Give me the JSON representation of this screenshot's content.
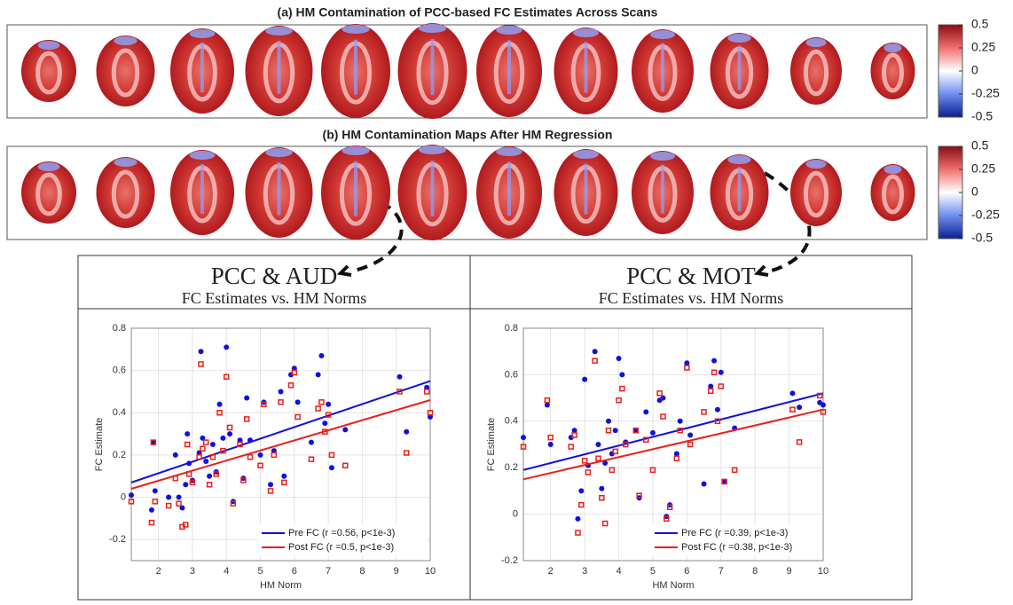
{
  "panel_a": {
    "title": "(a) HM Contamination of PCC-based FC Estimates Across Scans"
  },
  "panel_b": {
    "title": "(b) HM Contamination Maps After HM Regression"
  },
  "colorbar": {
    "lim": [
      -0.5,
      0.5
    ],
    "ticks": [
      0.5,
      0.25,
      0,
      -0.25,
      -0.5
    ]
  },
  "chart_data": [
    {
      "type": "scatter",
      "title": "PCC & AUD",
      "subtitle": "FC Estimates vs. HM Norms",
      "x_label": "HM Norm",
      "y_label": "FC Estimate",
      "grid": true,
      "legend": "lower right",
      "xlim": [
        1.2,
        10
      ],
      "ylim": [
        -0.3,
        0.8
      ],
      "xticks": [
        2,
        3,
        4,
        5,
        6,
        7,
        8,
        9,
        10
      ],
      "yticks": [
        -0.2,
        0,
        0.2,
        0.4,
        0.6,
        0.8
      ],
      "x": [
        1.2,
        1.8,
        1.85,
        1.9,
        2.3,
        2.5,
        2.6,
        2.7,
        2.8,
        2.85,
        2.9,
        3.0,
        3.2,
        3.25,
        3.3,
        3.4,
        3.5,
        3.6,
        3.7,
        3.8,
        3.9,
        4.0,
        4.1,
        4.2,
        4.4,
        4.5,
        4.6,
        4.7,
        5.0,
        5.1,
        5.3,
        5.4,
        5.6,
        5.7,
        5.9,
        6.0,
        6.1,
        6.5,
        6.7,
        6.8,
        6.9,
        7.0,
        7.1,
        7.5,
        9.1,
        9.3,
        9.9,
        10.0
      ],
      "series": [
        {
          "name": "Pre FC (r =0.56, p<1e-3)",
          "color": "#1010e0",
          "marker": "circle",
          "fit": [
            0.07,
            0.55
          ],
          "values": [
            0.01,
            -0.06,
            0.26,
            0.03,
            0.0,
            0.2,
            0.0,
            -0.05,
            0.06,
            0.3,
            0.16,
            0.08,
            0.21,
            0.69,
            0.28,
            0.17,
            0.1,
            0.25,
            0.12,
            0.44,
            0.28,
            0.71,
            0.3,
            -0.02,
            0.27,
            0.09,
            0.47,
            0.27,
            0.2,
            0.45,
            0.06,
            0.22,
            0.5,
            0.1,
            0.58,
            0.61,
            0.45,
            0.26,
            0.58,
            0.67,
            0.35,
            0.44,
            0.14,
            0.32,
            0.57,
            0.31,
            0.52,
            0.38
          ]
        },
        {
          "name": "Post FC (r =0.5, p<1e-3)",
          "color": "#e8201c",
          "marker": "square",
          "fit": [
            0.04,
            0.46
          ],
          "values": [
            -0.02,
            -0.12,
            0.26,
            -0.02,
            -0.04,
            0.09,
            -0.03,
            -0.14,
            -0.13,
            0.25,
            0.11,
            0.07,
            0.19,
            0.63,
            0.23,
            0.26,
            0.06,
            0.19,
            0.11,
            0.4,
            0.22,
            0.57,
            0.33,
            -0.03,
            0.25,
            0.08,
            0.37,
            0.19,
            0.15,
            0.44,
            0.03,
            0.2,
            0.45,
            0.07,
            0.53,
            0.59,
            0.38,
            0.18,
            0.42,
            0.45,
            0.31,
            0.39,
            0.2,
            0.15,
            0.5,
            0.21,
            0.5,
            0.4
          ]
        }
      ]
    },
    {
      "type": "scatter",
      "title": "PCC & MOT",
      "subtitle": "FC Estimates vs. HM Norms",
      "x_label": "HM Norm",
      "y_label": "FC Estimate",
      "grid": true,
      "legend": "lower right",
      "xlim": [
        1.2,
        10
      ],
      "ylim": [
        -0.2,
        0.8
      ],
      "xticks": [
        2,
        3,
        4,
        5,
        6,
        7,
        8,
        9,
        10
      ],
      "yticks": [
        -0.2,
        0,
        0.2,
        0.4,
        0.6,
        0.8
      ],
      "x": [
        1.2,
        1.9,
        2.0,
        2.6,
        2.7,
        2.8,
        2.9,
        3.0,
        3.1,
        3.3,
        3.4,
        3.5,
        3.6,
        3.7,
        3.8,
        3.9,
        4.0,
        4.1,
        4.2,
        4.5,
        4.6,
        4.8,
        5.0,
        5.2,
        5.3,
        5.4,
        5.5,
        5.7,
        5.8,
        6.0,
        6.1,
        6.5,
        6.7,
        6.8,
        6.9,
        7.0,
        7.1,
        7.4,
        9.1,
        9.3,
        9.9,
        10.0
      ],
      "series": [
        {
          "name": "Pre FC (r =0.39, p<1e-3)",
          "color": "#1010e0",
          "marker": "circle",
          "fit": [
            0.19,
            0.52
          ],
          "values": [
            0.33,
            0.47,
            0.3,
            0.33,
            0.36,
            -0.02,
            0.1,
            0.58,
            0.21,
            0.7,
            0.3,
            0.11,
            0.22,
            0.4,
            0.26,
            0.36,
            0.67,
            0.6,
            0.31,
            0.36,
            0.07,
            0.44,
            0.35,
            0.49,
            0.5,
            -0.01,
            0.04,
            0.26,
            0.4,
            0.65,
            0.34,
            0.13,
            0.55,
            0.66,
            0.45,
            0.61,
            0.14,
            0.37,
            0.52,
            0.46,
            0.48,
            0.47
          ]
        },
        {
          "name": "Post FC (r =0.38, p<1e-3)",
          "color": "#e8201c",
          "marker": "square",
          "fit": [
            0.15,
            0.45
          ],
          "values": [
            0.29,
            0.49,
            0.33,
            0.29,
            0.34,
            -0.08,
            0.04,
            0.23,
            0.18,
            0.66,
            0.24,
            0.07,
            -0.04,
            0.36,
            0.19,
            0.27,
            0.49,
            0.54,
            0.3,
            0.36,
            0.08,
            0.32,
            0.19,
            0.52,
            0.42,
            -0.02,
            0.03,
            0.24,
            0.36,
            0.63,
            0.3,
            0.44,
            0.53,
            0.61,
            0.4,
            0.55,
            0.14,
            0.19,
            0.45,
            0.31,
            0.51,
            0.44
          ]
        }
      ]
    }
  ]
}
